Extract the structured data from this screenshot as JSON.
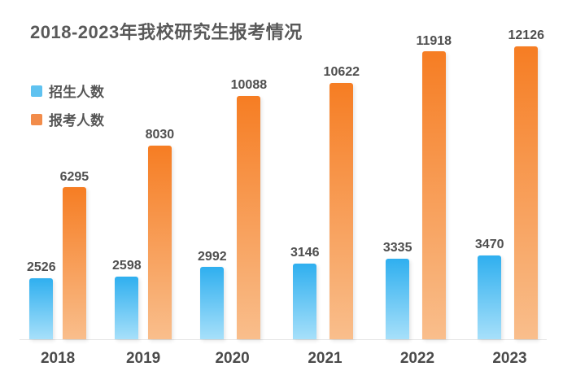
{
  "chart_data": {
    "type": "bar",
    "title": "2018-2023年我校研究生报考情况",
    "categories": [
      "2018",
      "2019",
      "2020",
      "2021",
      "2022",
      "2023"
    ],
    "series": [
      {
        "name": "招生人数",
        "values": [
          2526,
          2598,
          2992,
          3146,
          3335,
          3470
        ],
        "color_top": "#2FAFEF",
        "color_bottom": "#A7E0FA",
        "legend_color": "#5FC2F0"
      },
      {
        "name": "报考人数",
        "values": [
          6295,
          8030,
          10088,
          10622,
          11918,
          12126
        ],
        "color_top": "#F67D23",
        "color_bottom": "#F9BE8C",
        "legend_color": "#F28C4A"
      }
    ],
    "xlabel": "",
    "ylabel": "",
    "ylim": [
      0,
      12126
    ],
    "grid": false,
    "axis_line_color": "#E4E4E4",
    "value_label_color": "#4F4F4F",
    "title_color": "#595959",
    "background": "#FFFFFF",
    "legend_position": "top-left",
    "value_labels": true
  }
}
